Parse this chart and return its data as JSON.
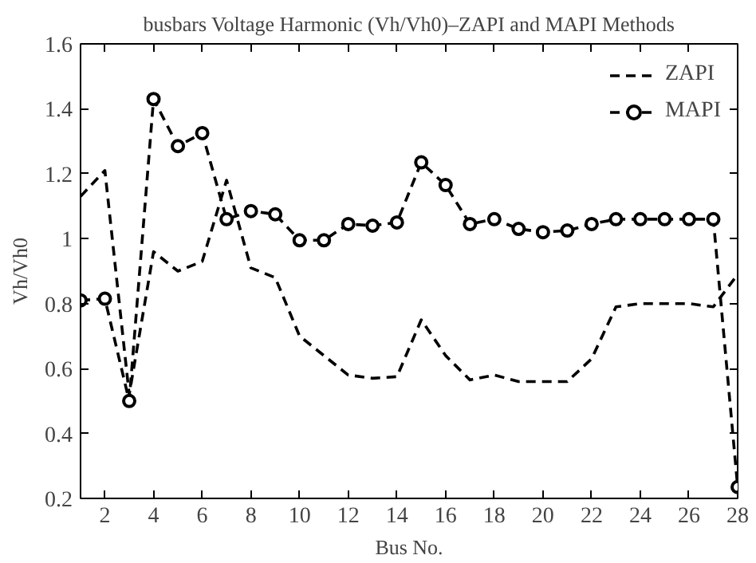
{
  "chart_data": {
    "type": "line",
    "title": "busbars Voltage Harmonic (Vh/Vh0)–ZAPI and MAPI Methods",
    "xlabel": "Bus No.",
    "ylabel": "Vh/Vh0",
    "x": [
      1,
      2,
      3,
      4,
      5,
      6,
      7,
      8,
      9,
      10,
      11,
      12,
      13,
      14,
      15,
      16,
      17,
      18,
      19,
      20,
      21,
      22,
      23,
      24,
      25,
      26,
      27,
      28
    ],
    "series": [
      {
        "name": "ZAPI",
        "color": "#000000",
        "marker": "none",
        "line_style": "dashed",
        "values": [
          1.13,
          1.21,
          0.52,
          0.96,
          0.9,
          0.93,
          1.18,
          0.91,
          0.88,
          0.7,
          0.64,
          0.58,
          0.57,
          0.575,
          0.75,
          0.64,
          0.565,
          0.58,
          0.56,
          0.56,
          0.56,
          0.63,
          0.79,
          0.8,
          0.8,
          0.8,
          0.79,
          0.89
        ]
      },
      {
        "name": "MAPI",
        "color": "#000000",
        "marker": "circle",
        "line_style": "dashed",
        "values": [
          0.81,
          0.815,
          0.5,
          1.43,
          1.285,
          1.325,
          1.06,
          1.085,
          1.075,
          0.995,
          0.995,
          1.045,
          1.04,
          1.05,
          1.235,
          1.165,
          1.045,
          1.06,
          1.03,
          1.02,
          1.025,
          1.045,
          1.06,
          1.06,
          1.06,
          1.06,
          1.06,
          0.235
        ]
      }
    ],
    "xlim": [
      1,
      28
    ],
    "xticks": [
      2,
      4,
      6,
      8,
      10,
      12,
      14,
      16,
      18,
      20,
      22,
      24,
      26,
      28
    ],
    "ylim": [
      0.2,
      1.6
    ],
    "yticks": [
      {
        "value": 0.2,
        "label": "0.2"
      },
      {
        "value": 0.4,
        "label": "0.4"
      },
      {
        "value": 0.6,
        "label": "0.6"
      },
      {
        "value": 0.8,
        "label": "0.8"
      },
      1,
      {
        "value": 1.2,
        "label": "1.2"
      },
      {
        "value": 1.4,
        "label": "1.4"
      },
      {
        "value": 1.6,
        "label": "1.6"
      }
    ],
    "grid": false,
    "legend": "top right"
  }
}
